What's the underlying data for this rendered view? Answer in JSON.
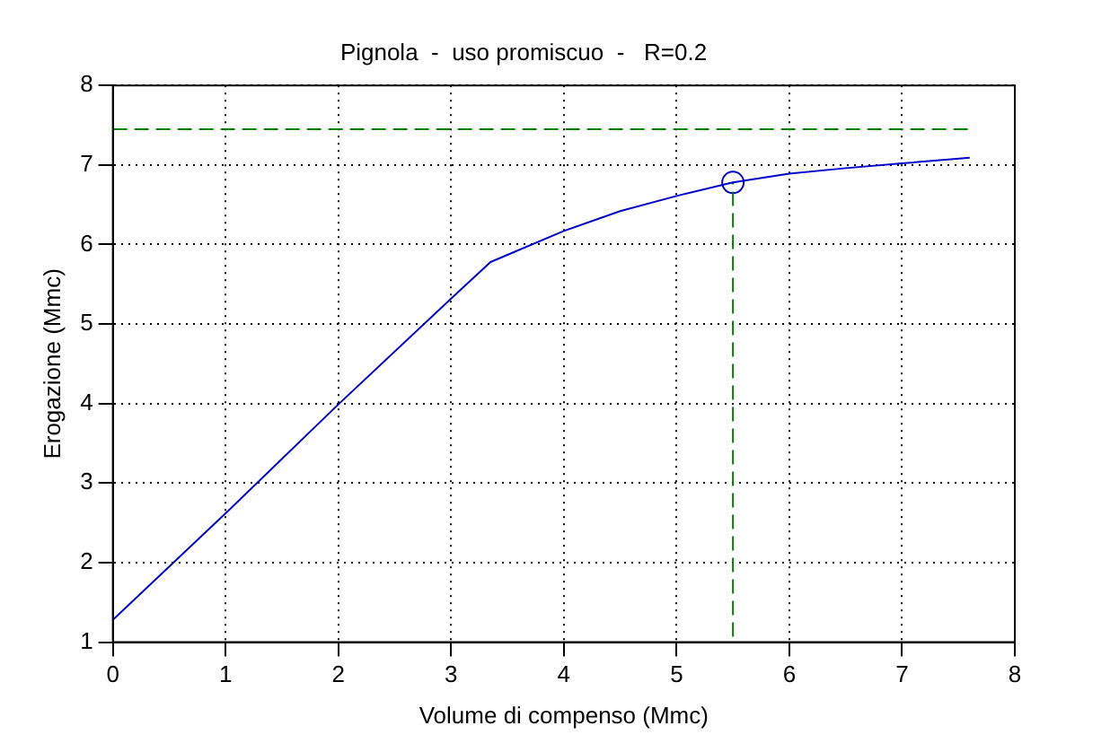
{
  "chart_data": {
    "type": "line",
    "title": "Pignola  -  uso promiscuo  -   R=0.2",
    "xlabel": "Volume di compenso (Mmc)",
    "ylabel": "Erogazione (Mmc)",
    "xlim": [
      0,
      8
    ],
    "xticks": [
      0,
      1,
      2,
      3,
      4,
      5,
      6,
      7,
      8
    ],
    "ylim": [
      1,
      8
    ],
    "yticks": [
      1,
      2,
      3,
      4,
      5,
      6,
      7,
      8
    ],
    "grid": true,
    "legend": false,
    "series": [
      {
        "color": "#0000cc",
        "x": [
          0,
          1,
          2,
          3,
          3.35,
          3.5,
          4,
          4.5,
          5,
          5.5,
          6,
          6.5,
          7,
          7.6
        ],
        "values": [
          1.28,
          2.62,
          3.99,
          5.32,
          5.78,
          5.87,
          6.17,
          6.42,
          6.61,
          6.78,
          6.89,
          6.96,
          7.02,
          7.09
        ],
        "marker": "none",
        "line_style": "solid"
      },
      {
        "color": "#008000",
        "x": [
          0,
          7.6
        ],
        "values": [
          7.45,
          7.45
        ],
        "marker": "none",
        "line_style": "dashed"
      },
      {
        "color": "#008000",
        "x": [
          5.5,
          5.5
        ],
        "values": [
          1.07,
          6.78
        ],
        "marker": "none",
        "line_style": "dashed"
      },
      {
        "type": "scatter",
        "color": "#0000cc",
        "x": [
          5.5
        ],
        "values": [
          6.78
        ],
        "marker": "circle"
      }
    ]
  }
}
